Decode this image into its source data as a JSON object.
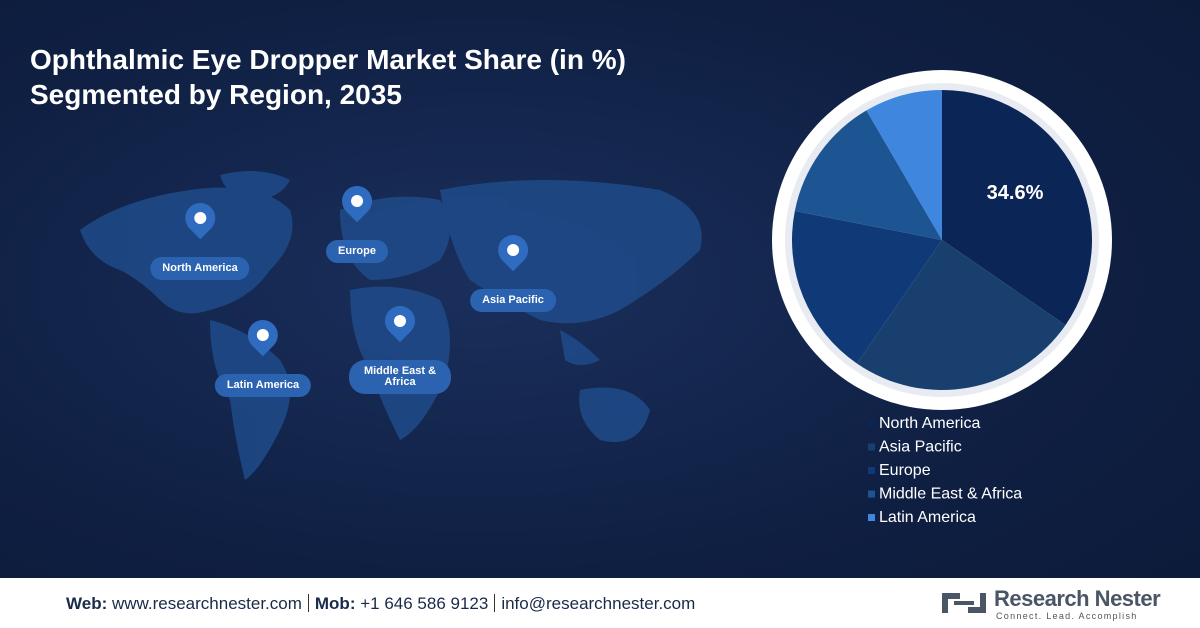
{
  "chart_data": {
    "type": "pie",
    "title": "Ophthalmic Eye Dropper Market Share (in %) Segmented by Region, 2035",
    "categories": [
      "North America",
      "Asia Pacific",
      "Europe",
      "Middle East & Africa",
      "Latin America"
    ],
    "values": [
      34.6,
      25.0,
      18.5,
      13.5,
      8.4
    ],
    "value_labels": [
      "34.6%",
      null,
      null,
      null,
      null
    ],
    "colors": [
      "#0b2656",
      "#183f6e",
      "#0f3a77",
      "#1d5592",
      "#3f86de"
    ],
    "legend": "bottom"
  },
  "map": {
    "labels": [
      "North America",
      "Europe",
      "Asia Pacific",
      "Latin America",
      "Middle East & Africa"
    ]
  },
  "footer": {
    "web_label": "Web:",
    "web": "www.researchnester.com",
    "mob_label": "Mob:",
    "mob": "+1 646 586 9123",
    "email": "info@researchnester.com",
    "brand": "Research Nester",
    "tagline": "Connect. Lead. Accomplish"
  }
}
